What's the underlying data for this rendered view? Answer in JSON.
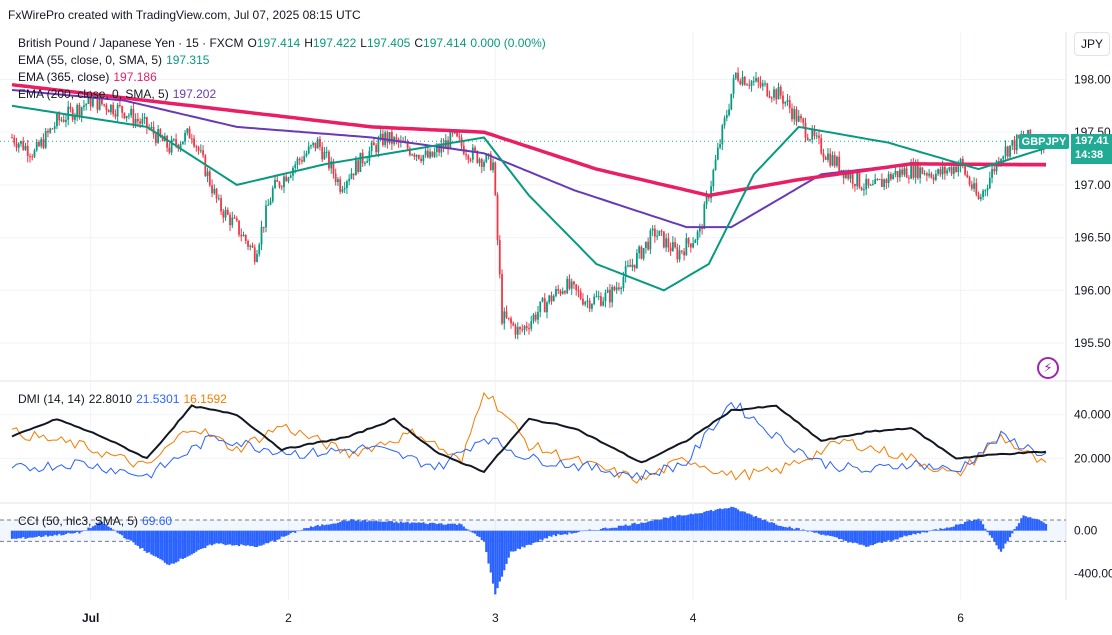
{
  "header": {
    "credit": "FxWirePro created with TradingView.com, Jul 07, 2025 08:15 UTC",
    "symbol_desc": "British Pound / Japanese Yen · 15 · FXCM",
    "ohlc": {
      "o_label": "O",
      "o": "197.414",
      "h_label": "H",
      "h": "197.422",
      "l_label": "L",
      "l": "197.405",
      "c_label": "C",
      "c": "197.414",
      "change": "0.000 (0.00%)"
    }
  },
  "unit_label": "JPY",
  "symbol_tag": "GBPJPY",
  "price_tag": {
    "price": "197.41",
    "countdown": "14:38"
  },
  "legend": {
    "ema55": {
      "label": "EMA (55, close, 0, SMA, 5)",
      "value": "197.315",
      "color": "#089981"
    },
    "ema365": {
      "label": "EMA (365, close)",
      "value": "197.186",
      "color": "#e91e63"
    },
    "ema200": {
      "label": "EMA (200, close, 0, SMA, 5)",
      "value": "197.202",
      "color": "#673ab7"
    },
    "dmi": {
      "label": "DMI (14, 14)",
      "adx": "22.8010",
      "plus": "21.5301",
      "minus": "16.1592"
    },
    "cci": {
      "label": "CCI (50, hlc3, SMA, 5)",
      "value": "69.60"
    }
  },
  "colors": {
    "up": "#089981",
    "down": "#f23645",
    "ema55": "#089981",
    "ema365": "#e91e63",
    "ema200": "#673ab7",
    "adx": "#131722",
    "di_plus": "#2962ff",
    "di_minus": "#f57c00",
    "cci": "#2962ff",
    "accent": "#22ab94"
  },
  "icons": {
    "indicator": "lightning-icon"
  },
  "chart_data": [
    {
      "type": "candlestick",
      "title": "British Pound / Japanese Yen · 15 · FXCM",
      "y_ticks": [
        "198.00",
        "197.50",
        "197.00",
        "196.50",
        "196.00",
        "195.50"
      ],
      "y_tick_values": [
        198.0,
        197.5,
        197.0,
        196.5,
        196.0,
        195.5
      ],
      "ylim": [
        195.15,
        198.45
      ],
      "x_ticks": [
        "Jul",
        "2",
        "3",
        "4",
        "6"
      ],
      "grid": true,
      "price_path": {
        "start": 197.45,
        "keys": [
          [
            0,
            197.45
          ],
          [
            10,
            197.3
          ],
          [
            20,
            197.6
          ],
          [
            35,
            197.8
          ],
          [
            50,
            197.7
          ],
          [
            60,
            197.55
          ],
          [
            70,
            197.35
          ],
          [
            80,
            197.5
          ],
          [
            92,
            196.8
          ],
          [
            100,
            196.6
          ],
          [
            108,
            196.35
          ],
          [
            116,
            196.95
          ],
          [
            126,
            197.2
          ],
          [
            136,
            197.4
          ],
          [
            146,
            197.0
          ],
          [
            156,
            197.25
          ],
          [
            166,
            197.45
          ],
          [
            176,
            197.35
          ],
          [
            186,
            197.25
          ],
          [
            196,
            197.45
          ],
          [
            204,
            197.3
          ],
          [
            214,
            197.2
          ],
          [
            218,
            195.75
          ],
          [
            226,
            195.6
          ],
          [
            236,
            195.85
          ],
          [
            246,
            196.05
          ],
          [
            256,
            195.9
          ],
          [
            266,
            195.95
          ],
          [
            276,
            196.25
          ],
          [
            286,
            196.55
          ],
          [
            296,
            196.35
          ],
          [
            306,
            196.55
          ],
          [
            316,
            197.5
          ],
          [
            322,
            198.05
          ],
          [
            332,
            197.95
          ],
          [
            342,
            197.85
          ],
          [
            352,
            197.55
          ],
          [
            362,
            197.3
          ],
          [
            372,
            197.1
          ],
          [
            382,
            196.95
          ],
          [
            392,
            197.1
          ],
          [
            402,
            197.15
          ],
          [
            412,
            197.1
          ],
          [
            422,
            197.2
          ],
          [
            430,
            196.85
          ],
          [
            440,
            197.3
          ],
          [
            450,
            197.45
          ],
          [
            460,
            197.41
          ]
        ]
      },
      "ema55_path": [
        [
          0,
          197.75
        ],
        [
          60,
          197.55
        ],
        [
          100,
          197.0
        ],
        [
          140,
          197.2
        ],
        [
          210,
          197.45
        ],
        [
          230,
          196.9
        ],
        [
          260,
          196.25
        ],
        [
          290,
          196.0
        ],
        [
          310,
          196.25
        ],
        [
          330,
          197.1
        ],
        [
          350,
          197.55
        ],
        [
          390,
          197.4
        ],
        [
          430,
          197.15
        ],
        [
          460,
          197.35
        ]
      ],
      "ema200_path": [
        [
          0,
          197.9
        ],
        [
          50,
          197.8
        ],
        [
          100,
          197.55
        ],
        [
          160,
          197.45
        ],
        [
          210,
          197.3
        ],
        [
          250,
          196.95
        ],
        [
          300,
          196.6
        ],
        [
          320,
          196.6
        ],
        [
          360,
          197.1
        ],
        [
          400,
          197.2
        ],
        [
          460,
          197.2
        ]
      ],
      "ema365_path": [
        [
          0,
          197.95
        ],
        [
          80,
          197.75
        ],
        [
          160,
          197.55
        ],
        [
          210,
          197.5
        ],
        [
          260,
          197.15
        ],
        [
          310,
          196.9
        ],
        [
          350,
          197.05
        ],
        [
          400,
          197.2
        ],
        [
          460,
          197.19
        ]
      ]
    },
    {
      "type": "line",
      "title": "DMI (14, 14)",
      "y_ticks": [
        "40.000",
        "20.000"
      ],
      "y_tick_values": [
        40,
        20
      ],
      "ylim": [
        0,
        55
      ],
      "series": [
        {
          "name": "",
          "keys": [
            [
              0,
              30
            ],
            [
              20,
              38
            ],
            [
              40,
              30
            ],
            [
              60,
              20
            ],
            [
              80,
              44
            ],
            [
              100,
              40
            ],
            [
              120,
              24
            ],
            [
              150,
              30
            ],
            [
              170,
              38
            ],
            [
              190,
              22
            ],
            [
              210,
              14
            ],
            [
              230,
              38
            ],
            [
              250,
              34
            ],
            [
              280,
              18
            ],
            [
              300,
              28
            ],
            [
              320,
              42
            ],
            [
              340,
              44
            ],
            [
              360,
              28
            ],
            [
              380,
              32
            ],
            [
              400,
              34
            ],
            [
              420,
              20
            ],
            [
              440,
              22
            ],
            [
              460,
              23
            ]
          ]
        },
        {
          "name": "",
          "keys": [
            [
              0,
              15
            ],
            [
              30,
              18
            ],
            [
              60,
              12
            ],
            [
              90,
              30
            ],
            [
              110,
              25
            ],
            [
              130,
              22
            ],
            [
              160,
              25
            ],
            [
              190,
              16
            ],
            [
              210,
              30
            ],
            [
              230,
              20
            ],
            [
              250,
              17
            ],
            [
              280,
              12
            ],
            [
              300,
              18
            ],
            [
              320,
              46
            ],
            [
              340,
              30
            ],
            [
              360,
              18
            ],
            [
              380,
              14
            ],
            [
              400,
              18
            ],
            [
              420,
              14
            ],
            [
              440,
              30
            ],
            [
              460,
              21.5
            ]
          ]
        },
        {
          "name": "",
          "keys": [
            [
              0,
              32
            ],
            [
              30,
              26
            ],
            [
              60,
              16
            ],
            [
              80,
              35
            ],
            [
              100,
              24
            ],
            [
              120,
              35
            ],
            [
              150,
              22
            ],
            [
              180,
              32
            ],
            [
              200,
              18
            ],
            [
              210,
              52
            ],
            [
              230,
              26
            ],
            [
              260,
              16
            ],
            [
              280,
              10
            ],
            [
              300,
              20
            ],
            [
              320,
              12
            ],
            [
              340,
              14
            ],
            [
              370,
              28
            ],
            [
              400,
              20
            ],
            [
              420,
              12
            ],
            [
              440,
              30
            ],
            [
              460,
              16.2
            ]
          ]
        }
      ]
    },
    {
      "type": "bar",
      "title": "CCI (50, hlc3, SMA, 5)",
      "y_ticks": [
        "0.00",
        "-400.00"
      ],
      "y_tick_values": [
        0,
        -400
      ],
      "ylim": [
        -650,
        250
      ],
      "keys": [
        [
          0,
          -80
        ],
        [
          30,
          -20
        ],
        [
          40,
          80
        ],
        [
          60,
          -200
        ],
        [
          70,
          -320
        ],
        [
          90,
          -120
        ],
        [
          110,
          -150
        ],
        [
          130,
          20
        ],
        [
          150,
          100
        ],
        [
          170,
          80
        ],
        [
          200,
          60
        ],
        [
          210,
          -100
        ],
        [
          215,
          -600
        ],
        [
          222,
          -200
        ],
        [
          240,
          -50
        ],
        [
          270,
          40
        ],
        [
          300,
          150
        ],
        [
          320,
          220
        ],
        [
          340,
          60
        ],
        [
          360,
          -30
        ],
        [
          380,
          -150
        ],
        [
          400,
          -40
        ],
        [
          420,
          50
        ],
        [
          430,
          120
        ],
        [
          440,
          -200
        ],
        [
          450,
          150
        ],
        [
          460,
          69.6
        ]
      ]
    }
  ]
}
